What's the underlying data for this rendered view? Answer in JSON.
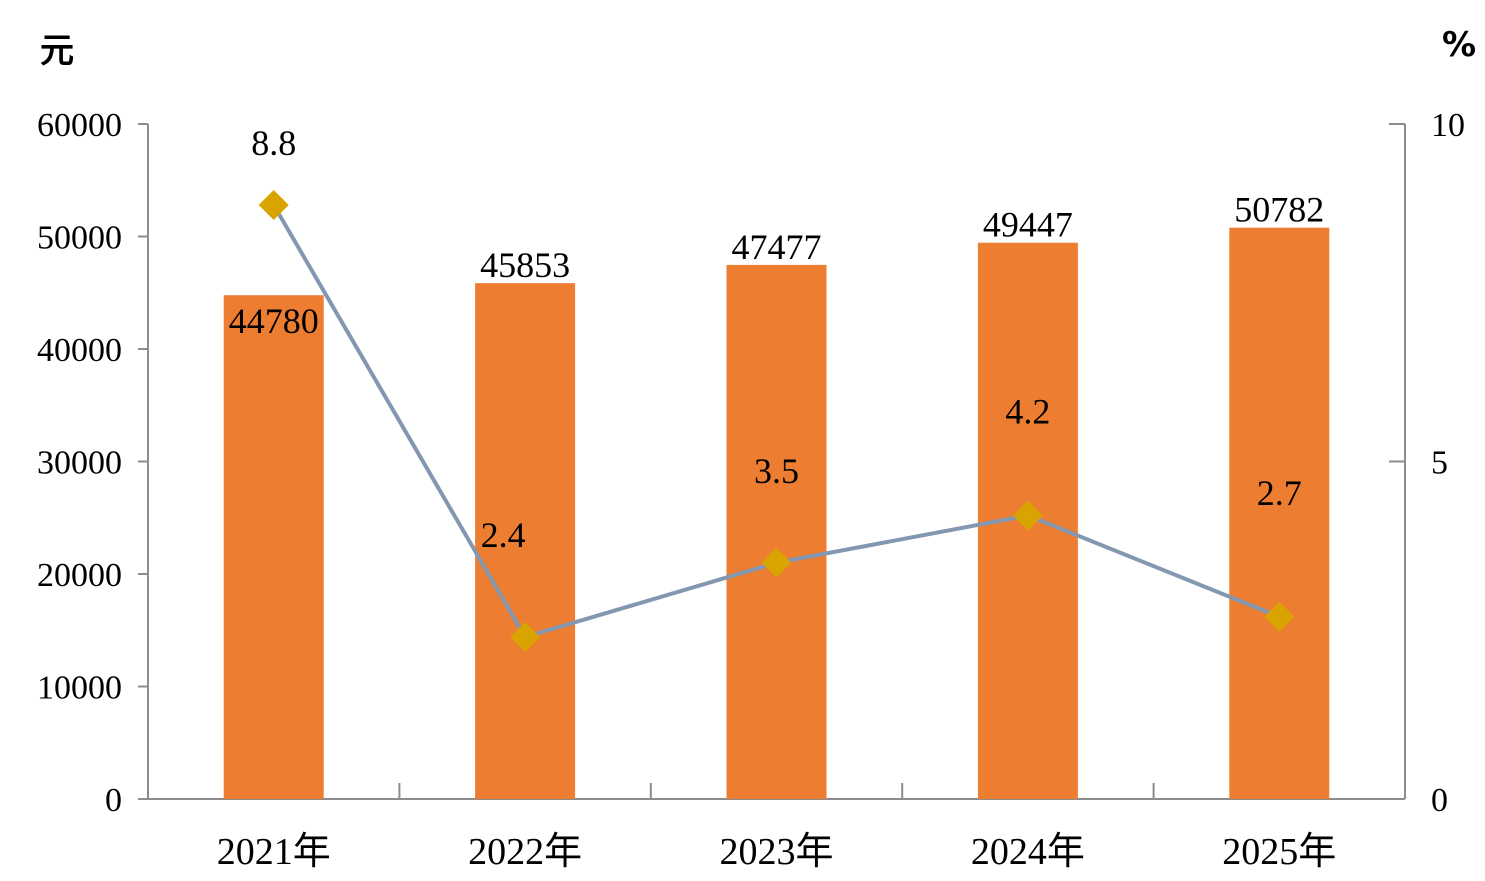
{
  "chart_data": {
    "type": "bar",
    "categories": [
      "2021年",
      "2022年",
      "2023年",
      "2024年",
      "2025年"
    ],
    "series": [
      {
        "type": "bar",
        "axis": "left",
        "values": [
          44780,
          45853,
          47477,
          49447,
          50782
        ],
        "color": "#ED7D31"
      },
      {
        "type": "line",
        "axis": "right",
        "values": [
          8.8,
          2.4,
          3.5,
          4.2,
          2.7
        ],
        "color": "#8497B0",
        "marker": "diamond",
        "marker_color": "#D9A300"
      }
    ],
    "y_left": {
      "unit": "元",
      "ylim": [
        0,
        60000
      ],
      "ticks": [
        "0",
        "10000",
        "20000",
        "30000",
        "40000",
        "50000",
        "60000"
      ]
    },
    "y_right": {
      "unit": "%",
      "ylim": [
        0,
        10
      ],
      "ticks": [
        "0",
        "5",
        "10"
      ]
    },
    "grid": false,
    "legend": "none"
  }
}
